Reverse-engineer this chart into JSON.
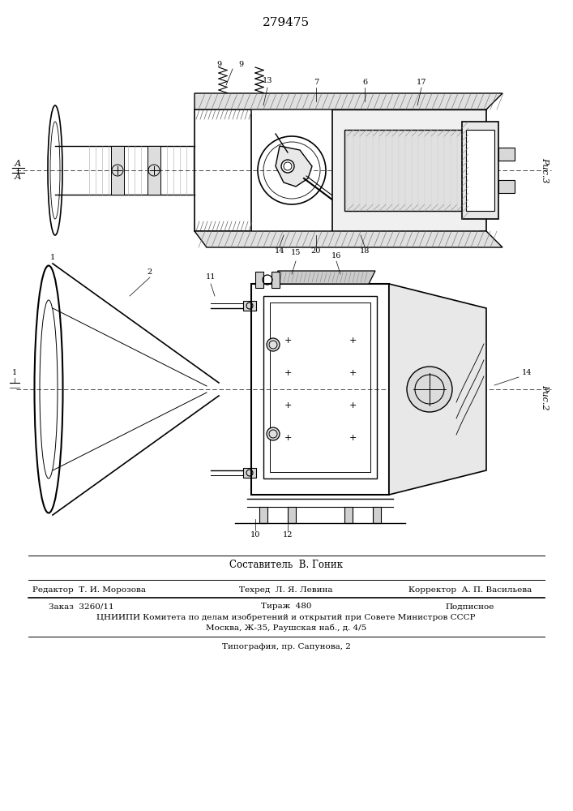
{
  "patent_number": "279475",
  "background_color": "#ffffff",
  "line_color": "#000000",
  "fig_width": 7.07,
  "fig_height": 10.0,
  "footer_line1_left": "Редактор  Т. И. Морозова",
  "footer_line1_mid": "Техред  Л. Я. Левина",
  "footer_line1_right": "Корректор  А. П. Васильева",
  "footer_line2_left": "Заказ  3260/11",
  "footer_line2_mid": "Тираж  480",
  "footer_line2_right": "Подписное",
  "footer_line3": "ЦНИИПИ Комитета по делам изобретений и открытий при Совете Министров СССР",
  "footer_line4": "Москва, Ж-35, Раушская наб., д. 4/5",
  "footer_line5": "Типография, пр. Сапунова, 2",
  "composer": "Составитель  В. Гоник",
  "fig3_label": "Рис.3",
  "fig2_label": "Рис.2"
}
